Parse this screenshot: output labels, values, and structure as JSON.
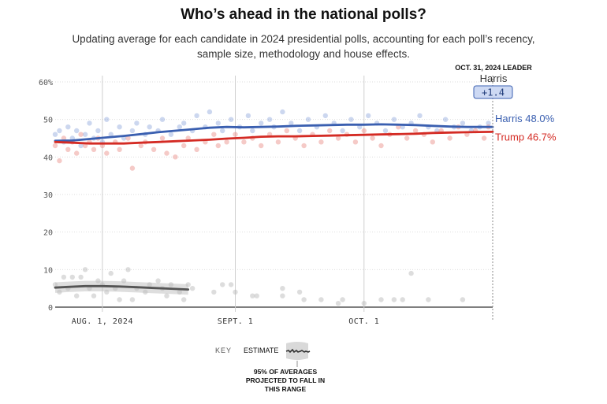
{
  "title": "Who’s ahead in the national polls?",
  "subtitle": "Updating average for each candidate in 2024 presidential polls, accounting for each poll’s recency, sample size, methodology and house effects.",
  "leader": {
    "date_label": "OCT. 31, 2024 LEADER",
    "name": "Harris",
    "margin": "+1.4"
  },
  "key": {
    "label": "KEY",
    "estimate": "ESTIMATE",
    "band_note": [
      "95% OF AVERAGES",
      "PROJECTED TO FALL IN",
      "THIS RANGE"
    ]
  },
  "colors": {
    "harris": "#3a5fb0",
    "trump": "#d42b24",
    "other": "#555555"
  },
  "chart_data": {
    "type": "line",
    "x_start": "2024-07-21",
    "x_end": "2024-10-31",
    "x_ticks": [
      {
        "date": "2024-08-01",
        "label": "AUG. 1, 2024"
      },
      {
        "date": "2024-09-01",
        "label": "SEPT. 1"
      },
      {
        "date": "2024-10-01",
        "label": "OCT. 1"
      }
    ],
    "ylim": [
      0,
      60
    ],
    "y_ticks": [
      {
        "value": 0,
        "label": "0"
      },
      {
        "value": 10,
        "label": "10"
      },
      {
        "value": 20,
        "label": "20"
      },
      {
        "value": 30,
        "label": "30"
      },
      {
        "value": 40,
        "label": "40"
      },
      {
        "value": 50,
        "label": "50"
      },
      {
        "value": 60,
        "label": "60%"
      }
    ],
    "series": [
      {
        "name": "Harris",
        "end_label": "Harris 48.0%",
        "color": "#3a5fb0",
        "dot_color": "#8fa6dc",
        "line": [
          [
            "2024-07-21",
            44.3
          ],
          [
            "2024-07-25",
            44.4
          ],
          [
            "2024-07-29",
            44.8
          ],
          [
            "2024-08-02",
            45.2
          ],
          [
            "2024-08-06",
            45.6
          ],
          [
            "2024-08-10",
            46.1
          ],
          [
            "2024-08-14",
            46.6
          ],
          [
            "2024-08-18",
            47.0
          ],
          [
            "2024-08-22",
            47.4
          ],
          [
            "2024-08-26",
            47.8
          ],
          [
            "2024-08-30",
            48.0
          ],
          [
            "2024-09-03",
            47.9
          ],
          [
            "2024-09-07",
            48.0
          ],
          [
            "2024-09-11",
            48.1
          ],
          [
            "2024-09-15",
            48.3
          ],
          [
            "2024-09-19",
            48.4
          ],
          [
            "2024-09-23",
            48.5
          ],
          [
            "2024-09-27",
            48.6
          ],
          [
            "2024-10-01",
            48.6
          ],
          [
            "2024-10-05",
            48.7
          ],
          [
            "2024-10-09",
            48.6
          ],
          [
            "2024-10-13",
            48.5
          ],
          [
            "2024-10-17",
            48.3
          ],
          [
            "2024-10-21",
            48.1
          ],
          [
            "2024-10-25",
            48.0
          ],
          [
            "2024-10-31",
            48.0
          ]
        ],
        "polls": [
          [
            "2024-07-21",
            46
          ],
          [
            "2024-07-22",
            47
          ],
          [
            "2024-07-23",
            44
          ],
          [
            "2024-07-24",
            48
          ],
          [
            "2024-07-25",
            45
          ],
          [
            "2024-07-26",
            47
          ],
          [
            "2024-07-27",
            43
          ],
          [
            "2024-07-28",
            46
          ],
          [
            "2024-07-29",
            49
          ],
          [
            "2024-07-30",
            45
          ],
          [
            "2024-07-31",
            47
          ],
          [
            "2024-08-01",
            44
          ],
          [
            "2024-08-02",
            50
          ],
          [
            "2024-08-03",
            46
          ],
          [
            "2024-08-05",
            48
          ],
          [
            "2024-08-06",
            45
          ],
          [
            "2024-08-08",
            47
          ],
          [
            "2024-08-09",
            49
          ],
          [
            "2024-08-11",
            46
          ],
          [
            "2024-08-12",
            48
          ],
          [
            "2024-08-14",
            47
          ],
          [
            "2024-08-15",
            50
          ],
          [
            "2024-08-17",
            46
          ],
          [
            "2024-08-19",
            48
          ],
          [
            "2024-08-20",
            49
          ],
          [
            "2024-08-22",
            47
          ],
          [
            "2024-08-23",
            51
          ],
          [
            "2024-08-25",
            48
          ],
          [
            "2024-08-26",
            52
          ],
          [
            "2024-08-28",
            49
          ],
          [
            "2024-08-29",
            47
          ],
          [
            "2024-08-31",
            50
          ],
          [
            "2024-09-02",
            48
          ],
          [
            "2024-09-04",
            51
          ],
          [
            "2024-09-05",
            47
          ],
          [
            "2024-09-07",
            49
          ],
          [
            "2024-09-09",
            50
          ],
          [
            "2024-09-10",
            48
          ],
          [
            "2024-09-12",
            52
          ],
          [
            "2024-09-14",
            49
          ],
          [
            "2024-09-16",
            47
          ],
          [
            "2024-09-18",
            50
          ],
          [
            "2024-09-20",
            48
          ],
          [
            "2024-09-22",
            51
          ],
          [
            "2024-09-24",
            49
          ],
          [
            "2024-09-26",
            47
          ],
          [
            "2024-09-28",
            50
          ],
          [
            "2024-09-30",
            48
          ],
          [
            "2024-10-02",
            51
          ],
          [
            "2024-10-04",
            49
          ],
          [
            "2024-10-06",
            47
          ],
          [
            "2024-10-08",
            50
          ],
          [
            "2024-10-10",
            48
          ],
          [
            "2024-10-12",
            49
          ],
          [
            "2024-10-14",
            51
          ],
          [
            "2024-10-16",
            48
          ],
          [
            "2024-10-18",
            47
          ],
          [
            "2024-10-20",
            50
          ],
          [
            "2024-10-22",
            48
          ],
          [
            "2024-10-24",
            49
          ],
          [
            "2024-10-26",
            47
          ],
          [
            "2024-10-28",
            48
          ],
          [
            "2024-10-30",
            49
          ]
        ]
      },
      {
        "name": "Trump",
        "end_label": "Trump 46.7%",
        "color": "#d42b24",
        "dot_color": "#e88a82",
        "line": [
          [
            "2024-07-21",
            44.0
          ],
          [
            "2024-07-25",
            43.8
          ],
          [
            "2024-07-29",
            43.6
          ],
          [
            "2024-08-02",
            43.6
          ],
          [
            "2024-08-06",
            43.6
          ],
          [
            "2024-08-10",
            43.8
          ],
          [
            "2024-08-14",
            44.0
          ],
          [
            "2024-08-18",
            44.2
          ],
          [
            "2024-08-22",
            44.4
          ],
          [
            "2024-08-26",
            44.6
          ],
          [
            "2024-08-30",
            44.9
          ],
          [
            "2024-09-03",
            45.1
          ],
          [
            "2024-09-07",
            45.4
          ],
          [
            "2024-09-11",
            45.5
          ],
          [
            "2024-09-15",
            45.5
          ],
          [
            "2024-09-19",
            45.6
          ],
          [
            "2024-09-23",
            45.7
          ],
          [
            "2024-09-27",
            45.8
          ],
          [
            "2024-10-01",
            45.9
          ],
          [
            "2024-10-05",
            46.0
          ],
          [
            "2024-10-09",
            46.1
          ],
          [
            "2024-10-13",
            46.2
          ],
          [
            "2024-10-17",
            46.4
          ],
          [
            "2024-10-21",
            46.5
          ],
          [
            "2024-10-25",
            46.6
          ],
          [
            "2024-10-31",
            46.7
          ]
        ],
        "polls": [
          [
            "2024-07-21",
            43
          ],
          [
            "2024-07-22",
            39
          ],
          [
            "2024-07-23",
            45
          ],
          [
            "2024-07-24",
            42
          ],
          [
            "2024-07-25",
            44
          ],
          [
            "2024-07-26",
            41
          ],
          [
            "2024-07-27",
            46
          ],
          [
            "2024-07-28",
            43
          ],
          [
            "2024-07-29",
            44
          ],
          [
            "2024-07-30",
            42
          ],
          [
            "2024-07-31",
            45
          ],
          [
            "2024-08-01",
            43
          ],
          [
            "2024-08-02",
            41
          ],
          [
            "2024-08-04",
            44
          ],
          [
            "2024-08-05",
            42
          ],
          [
            "2024-08-07",
            45
          ],
          [
            "2024-08-08",
            37
          ],
          [
            "2024-08-10",
            43
          ],
          [
            "2024-08-11",
            44
          ],
          [
            "2024-08-13",
            42
          ],
          [
            "2024-08-15",
            45
          ],
          [
            "2024-08-16",
            41
          ],
          [
            "2024-08-18",
            40
          ],
          [
            "2024-08-20",
            43
          ],
          [
            "2024-08-21",
            45
          ],
          [
            "2024-08-23",
            42
          ],
          [
            "2024-08-25",
            44
          ],
          [
            "2024-08-27",
            46
          ],
          [
            "2024-08-28",
            43
          ],
          [
            "2024-08-30",
            44
          ],
          [
            "2024-09-01",
            46
          ],
          [
            "2024-09-03",
            44
          ],
          [
            "2024-09-05",
            45
          ],
          [
            "2024-09-07",
            43
          ],
          [
            "2024-09-09",
            46
          ],
          [
            "2024-09-11",
            44
          ],
          [
            "2024-09-13",
            47
          ],
          [
            "2024-09-15",
            45
          ],
          [
            "2024-09-17",
            43
          ],
          [
            "2024-09-19",
            46
          ],
          [
            "2024-09-21",
            44
          ],
          [
            "2024-09-23",
            47
          ],
          [
            "2024-09-25",
            45
          ],
          [
            "2024-09-27",
            46
          ],
          [
            "2024-09-29",
            44
          ],
          [
            "2024-10-01",
            47
          ],
          [
            "2024-10-03",
            45
          ],
          [
            "2024-10-05",
            43
          ],
          [
            "2024-10-07",
            46
          ],
          [
            "2024-10-09",
            48
          ],
          [
            "2024-10-11",
            45
          ],
          [
            "2024-10-13",
            47
          ],
          [
            "2024-10-15",
            46
          ],
          [
            "2024-10-17",
            44
          ],
          [
            "2024-10-19",
            47
          ],
          [
            "2024-10-21",
            45
          ],
          [
            "2024-10-23",
            48
          ],
          [
            "2024-10-25",
            46
          ],
          [
            "2024-10-27",
            47
          ],
          [
            "2024-10-29",
            45
          ],
          [
            "2024-10-30",
            48
          ]
        ]
      },
      {
        "name": "",
        "end_label": "",
        "color": "#555555",
        "dot_color": "#b3b3b3",
        "band": 1.4,
        "line": [
          [
            "2024-07-21",
            5.2
          ],
          [
            "2024-07-24",
            5.4
          ],
          [
            "2024-07-28",
            5.6
          ],
          [
            "2024-08-01",
            5.6
          ],
          [
            "2024-08-05",
            5.5
          ],
          [
            "2024-08-09",
            5.3
          ],
          [
            "2024-08-13",
            5.1
          ],
          [
            "2024-08-17",
            4.9
          ],
          [
            "2024-08-21",
            4.7
          ]
        ],
        "polls": [
          [
            "2024-07-21",
            6
          ],
          [
            "2024-07-22",
            4
          ],
          [
            "2024-07-23",
            8
          ],
          [
            "2024-07-24",
            5
          ],
          [
            "2024-07-25",
            8
          ],
          [
            "2024-07-26",
            3
          ],
          [
            "2024-07-27",
            8
          ],
          [
            "2024-07-28",
            10
          ],
          [
            "2024-07-29",
            5
          ],
          [
            "2024-07-30",
            3
          ],
          [
            "2024-07-31",
            7
          ],
          [
            "2024-08-01",
            6
          ],
          [
            "2024-08-02",
            4
          ],
          [
            "2024-08-03",
            9
          ],
          [
            "2024-08-04",
            5
          ],
          [
            "2024-08-05",
            2
          ],
          [
            "2024-08-06",
            7
          ],
          [
            "2024-08-07",
            10
          ],
          [
            "2024-08-08",
            2
          ],
          [
            "2024-08-09",
            5
          ],
          [
            "2024-08-11",
            4
          ],
          [
            "2024-08-12",
            6
          ],
          [
            "2024-08-14",
            7
          ],
          [
            "2024-08-15",
            5
          ],
          [
            "2024-08-16",
            3
          ],
          [
            "2024-08-17",
            6
          ],
          [
            "2024-08-19",
            4
          ],
          [
            "2024-08-20",
            2
          ],
          [
            "2024-08-21",
            6
          ],
          [
            "2024-08-22",
            5
          ],
          [
            "2024-08-27",
            4
          ],
          [
            "2024-08-29",
            6
          ],
          [
            "2024-08-31",
            6
          ],
          [
            "2024-09-01",
            4
          ],
          [
            "2024-09-05",
            3
          ],
          [
            "2024-09-06",
            3
          ],
          [
            "2024-09-12",
            5
          ],
          [
            "2024-09-12",
            3
          ],
          [
            "2024-09-16",
            4
          ],
          [
            "2024-09-17",
            2
          ],
          [
            "2024-09-21",
            2
          ],
          [
            "2024-09-25",
            1
          ],
          [
            "2024-09-26",
            2
          ],
          [
            "2024-10-01",
            1
          ],
          [
            "2024-10-05",
            2
          ],
          [
            "2024-10-08",
            2
          ],
          [
            "2024-10-10",
            2
          ],
          [
            "2024-10-12",
            9
          ],
          [
            "2024-10-16",
            2
          ],
          [
            "2024-10-24",
            2
          ]
        ]
      }
    ],
    "legend": "key-below"
  }
}
